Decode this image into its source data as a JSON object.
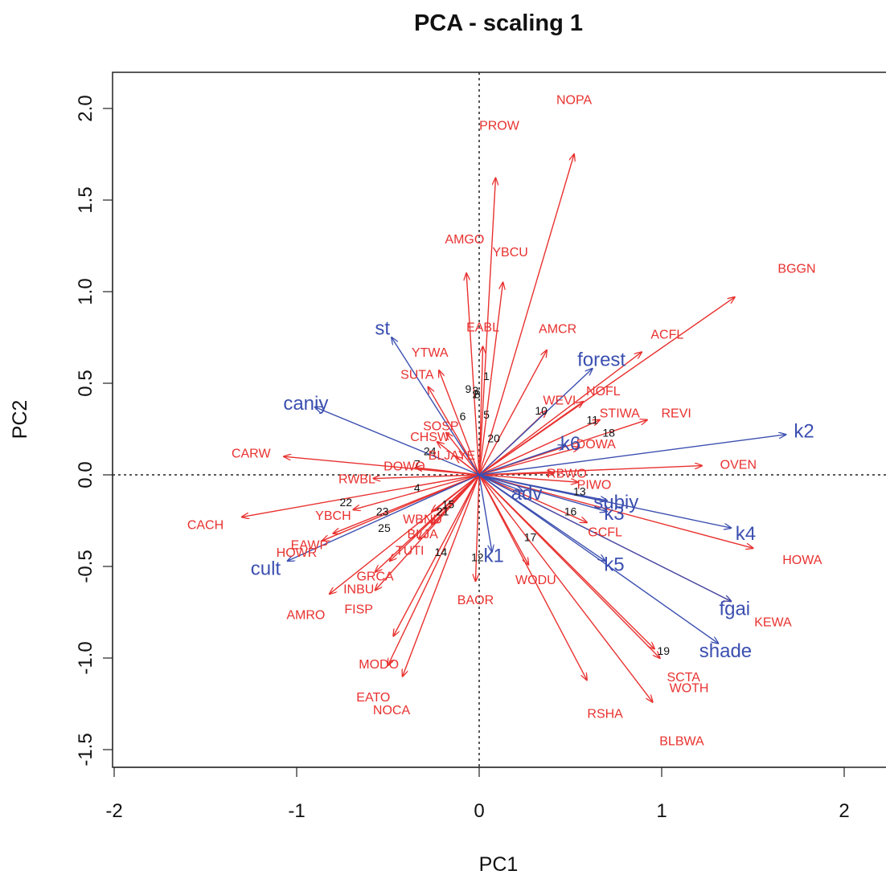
{
  "chart_data": {
    "type": "scatter",
    "title": "PCA - scaling 1",
    "xlabel": "PC1",
    "ylabel": "PC2",
    "xlim": [
      -2.0,
      2.2
    ],
    "ylim": [
      -1.6,
      2.2
    ],
    "x_ticks": [
      "-2",
      "-1",
      "0",
      "1",
      "2"
    ],
    "y_ticks": [
      "-1.5",
      "-1.0",
      "-0.5",
      "0.0",
      "0.5",
      "1.0",
      "1.5",
      "2.0"
    ],
    "reference_lines": {
      "x": 0,
      "y": 0,
      "style": "dotted"
    },
    "colors": {
      "species": "#e8312f",
      "variables": "#3b4fb0",
      "sites": "#111111"
    },
    "species": [
      {
        "name": "NOPA",
        "x": 0.52,
        "y": 2.05,
        "ax": 0.52,
        "ay": 1.75
      },
      {
        "name": "PROW",
        "x": 0.11,
        "y": 1.91,
        "ax": 0.09,
        "ay": 1.62
      },
      {
        "name": "AMGO",
        "x": -0.08,
        "y": 1.29,
        "ax": -0.07,
        "ay": 1.1
      },
      {
        "name": "YBCU",
        "x": 0.17,
        "y": 1.22,
        "ax": 0.13,
        "ay": 1.05
      },
      {
        "name": "BGGN",
        "x": 1.74,
        "y": 1.13,
        "ax": 1.4,
        "ay": 0.97
      },
      {
        "name": "EABL",
        "x": 0.02,
        "y": 0.81,
        "ax": 0.02,
        "ay": 0.7
      },
      {
        "name": "AMCR",
        "x": 0.43,
        "y": 0.8,
        "ax": 0.37,
        "ay": 0.68
      },
      {
        "name": "ACFL",
        "x": 1.03,
        "y": 0.77,
        "ax": 0.89,
        "ay": 0.67
      },
      {
        "name": "YTWA",
        "x": -0.27,
        "y": 0.67,
        "ax": -0.22,
        "ay": 0.57
      },
      {
        "name": "SUTA",
        "x": -0.34,
        "y": 0.55,
        "ax": -0.28,
        "ay": 0.48
      },
      {
        "name": "NOFL",
        "x": 0.68,
        "y": 0.46,
        "ax": 0.57,
        "ay": 0.4
      },
      {
        "name": "WEVI",
        "x": 0.44,
        "y": 0.41,
        "ax": 0.37,
        "ay": 0.35
      },
      {
        "name": "STIWA",
        "x": 0.77,
        "y": 0.34,
        "ax": 0.66,
        "ay": 0.3
      },
      {
        "name": "REVI",
        "x": 1.08,
        "y": 0.34,
        "ax": 0.92,
        "ay": 0.3
      },
      {
        "name": "SOSP",
        "x": -0.21,
        "y": 0.27,
        "ax": -0.18,
        "ay": 0.23
      },
      {
        "name": "CHSW",
        "x": -0.27,
        "y": 0.21,
        "ax": -0.23,
        "ay": 0.18
      },
      {
        "name": "BLJAYE",
        "x": -0.15,
        "y": 0.11,
        "ax": -0.13,
        "ay": 0.1
      },
      {
        "name": "DOWA",
        "x": 0.64,
        "y": 0.17,
        "ax": 0.55,
        "ay": 0.15
      },
      {
        "name": "CARW",
        "x": -1.25,
        "y": 0.12,
        "ax": -1.07,
        "ay": 0.1
      },
      {
        "name": "OVEN",
        "x": 1.42,
        "y": 0.06,
        "ax": 1.22,
        "ay": 0.05
      },
      {
        "name": "DOWO",
        "x": -0.41,
        "y": 0.05,
        "ax": -0.35,
        "ay": 0.04
      },
      {
        "name": "RBWO",
        "x": 0.48,
        "y": 0.01,
        "ax": 0.41,
        "ay": 0.01
      },
      {
        "name": "RWBL",
        "x": -0.67,
        "y": -0.02,
        "ax": -0.58,
        "ay": -0.02
      },
      {
        "name": "PIWO",
        "x": 0.63,
        "y": -0.05,
        "ax": 0.54,
        "ay": -0.04
      },
      {
        "name": "CACH",
        "x": -1.5,
        "y": -0.27,
        "ax": -1.3,
        "ay": -0.23
      },
      {
        "name": "YBCH",
        "x": -0.8,
        "y": -0.22,
        "ax": -0.69,
        "ay": -0.19
      },
      {
        "name": "WBNU",
        "x": -0.31,
        "y": -0.24,
        "ax": -0.26,
        "ay": -0.2
      },
      {
        "name": "GCFL",
        "x": 0.69,
        "y": -0.31,
        "ax": 0.59,
        "ay": -0.26
      },
      {
        "name": "BLJA",
        "x": -0.31,
        "y": -0.32,
        "ax": -0.26,
        "ay": -0.27
      },
      {
        "name": "EAWP",
        "x": -0.93,
        "y": -0.38,
        "ax": -0.8,
        "ay": -0.32
      },
      {
        "name": "HOWR",
        "x": -1.0,
        "y": -0.42,
        "ax": -0.86,
        "ay": -0.36
      },
      {
        "name": "TUTI",
        "x": -0.38,
        "y": -0.41,
        "ax": -0.33,
        "ay": -0.35
      },
      {
        "name": "HOWA",
        "x": 1.77,
        "y": -0.46,
        "ax": 1.5,
        "ay": -0.4
      },
      {
        "name": "WODU",
        "x": 0.31,
        "y": -0.57,
        "ax": 0.27,
        "ay": -0.49
      },
      {
        "name": "GRCA",
        "x": -0.57,
        "y": -0.55,
        "ax": -0.49,
        "ay": -0.47
      },
      {
        "name": "INBU",
        "x": -0.66,
        "y": -0.62,
        "ax": -0.57,
        "ay": -0.53
      },
      {
        "name": "BAOR",
        "x": -0.02,
        "y": -0.68,
        "ax": -0.02,
        "ay": -0.58
      },
      {
        "name": "AMRO",
        "x": -0.95,
        "y": -0.76,
        "ax": -0.82,
        "ay": -0.65
      },
      {
        "name": "FISP",
        "x": -0.66,
        "y": -0.73,
        "ax": -0.57,
        "ay": -0.63
      },
      {
        "name": "KEWA",
        "x": 1.61,
        "y": -0.8,
        "ax": 1.38,
        "ay": -0.69
      },
      {
        "name": "MODO",
        "x": -0.55,
        "y": -1.03,
        "ax": -0.47,
        "ay": -0.88
      },
      {
        "name": "NOCA",
        "x": -0.48,
        "y": -1.28,
        "ax": -0.42,
        "ay": -1.1
      },
      {
        "name": "EATO",
        "x": -0.58,
        "y": -1.21,
        "ax": -0.5,
        "ay": -1.04
      },
      {
        "name": "RSHA",
        "x": 0.69,
        "y": -1.3,
        "ax": 0.59,
        "ay": -1.12
      },
      {
        "name": "WOTH",
        "x": 1.15,
        "y": -1.16,
        "ax": 0.99,
        "ay": -1.0
      },
      {
        "name": "SCTA",
        "x": 1.12,
        "y": -1.1,
        "ax": 0.96,
        "ay": -0.95
      },
      {
        "name": "BLBWA",
        "x": 1.11,
        "y": -1.45,
        "ax": 0.95,
        "ay": -1.24
      }
    ],
    "variables": [
      {
        "name": "st",
        "x": -0.53,
        "y": 0.8,
        "ax": -0.48,
        "ay": 0.75
      },
      {
        "name": "caniy",
        "x": -0.95,
        "y": 0.39,
        "ax": -0.9,
        "ay": 0.37
      },
      {
        "name": "forest",
        "x": 0.67,
        "y": 0.63,
        "ax": 0.62,
        "ay": 0.58
      },
      {
        "name": "k2",
        "x": 1.78,
        "y": 0.24,
        "ax": 1.68,
        "ay": 0.22
      },
      {
        "name": "k6",
        "x": 0.5,
        "y": 0.17,
        "ax": 0.47,
        "ay": 0.16
      },
      {
        "name": "adv",
        "x": 0.26,
        "y": -0.1,
        "ax": 0.24,
        "ay": -0.09
      },
      {
        "name": "subiy",
        "x": 0.75,
        "y": -0.15,
        "ax": 0.7,
        "ay": -0.14
      },
      {
        "name": "k3",
        "x": 0.74,
        "y": -0.21,
        "ax": 0.7,
        "ay": -0.2
      },
      {
        "name": "k4",
        "x": 1.46,
        "y": -0.32,
        "ax": 1.38,
        "ay": -0.29
      },
      {
        "name": "k1",
        "x": 0.08,
        "y": -0.44,
        "ax": 0.07,
        "ay": -0.42
      },
      {
        "name": "k5",
        "x": 0.74,
        "y": -0.49,
        "ax": 0.69,
        "ay": -0.47
      },
      {
        "name": "cult",
        "x": -1.17,
        "y": -0.51,
        "ax": -1.05,
        "ay": -0.47
      },
      {
        "name": "fgai",
        "x": 1.4,
        "y": -0.73,
        "ax": 1.38,
        "ay": -0.69
      },
      {
        "name": "shade",
        "x": 1.35,
        "y": -0.96,
        "ax": 1.31,
        "ay": -0.92
      }
    ],
    "sites": [
      {
        "name": "1",
        "x": 0.04,
        "y": 0.54
      },
      {
        "name": "2",
        "x": -0.02,
        "y": 0.44
      },
      {
        "name": "3",
        "x": -0.02,
        "y": 0.46
      },
      {
        "name": "4",
        "x": -0.34,
        "y": -0.07
      },
      {
        "name": "5",
        "x": 0.04,
        "y": 0.33
      },
      {
        "name": "6",
        "x": -0.09,
        "y": 0.32
      },
      {
        "name": "7",
        "x": -0.34,
        "y": 0.06
      },
      {
        "name": "8",
        "x": -0.01,
        "y": 0.44
      },
      {
        "name": "9",
        "x": -0.06,
        "y": 0.47
      },
      {
        "name": "10",
        "x": 0.34,
        "y": 0.35
      },
      {
        "name": "11",
        "x": 0.62,
        "y": 0.3
      },
      {
        "name": "12",
        "x": -0.01,
        "y": -0.45
      },
      {
        "name": "13",
        "x": 0.55,
        "y": -0.09
      },
      {
        "name": "14",
        "x": -0.21,
        "y": -0.42
      },
      {
        "name": "15",
        "x": -0.17,
        "y": -0.16
      },
      {
        "name": "16",
        "x": 0.5,
        "y": -0.2
      },
      {
        "name": "17",
        "x": 0.28,
        "y": -0.34
      },
      {
        "name": "18",
        "x": 0.71,
        "y": 0.23
      },
      {
        "name": "19",
        "x": 1.01,
        "y": -0.96
      },
      {
        "name": "20",
        "x": 0.08,
        "y": 0.2
      },
      {
        "name": "21",
        "x": -0.2,
        "y": -0.2
      },
      {
        "name": "22",
        "x": -0.73,
        "y": -0.15
      },
      {
        "name": "23",
        "x": -0.53,
        "y": -0.2
      },
      {
        "name": "24",
        "x": -0.27,
        "y": 0.13
      },
      {
        "name": "25",
        "x": -0.52,
        "y": -0.29
      }
    ]
  }
}
